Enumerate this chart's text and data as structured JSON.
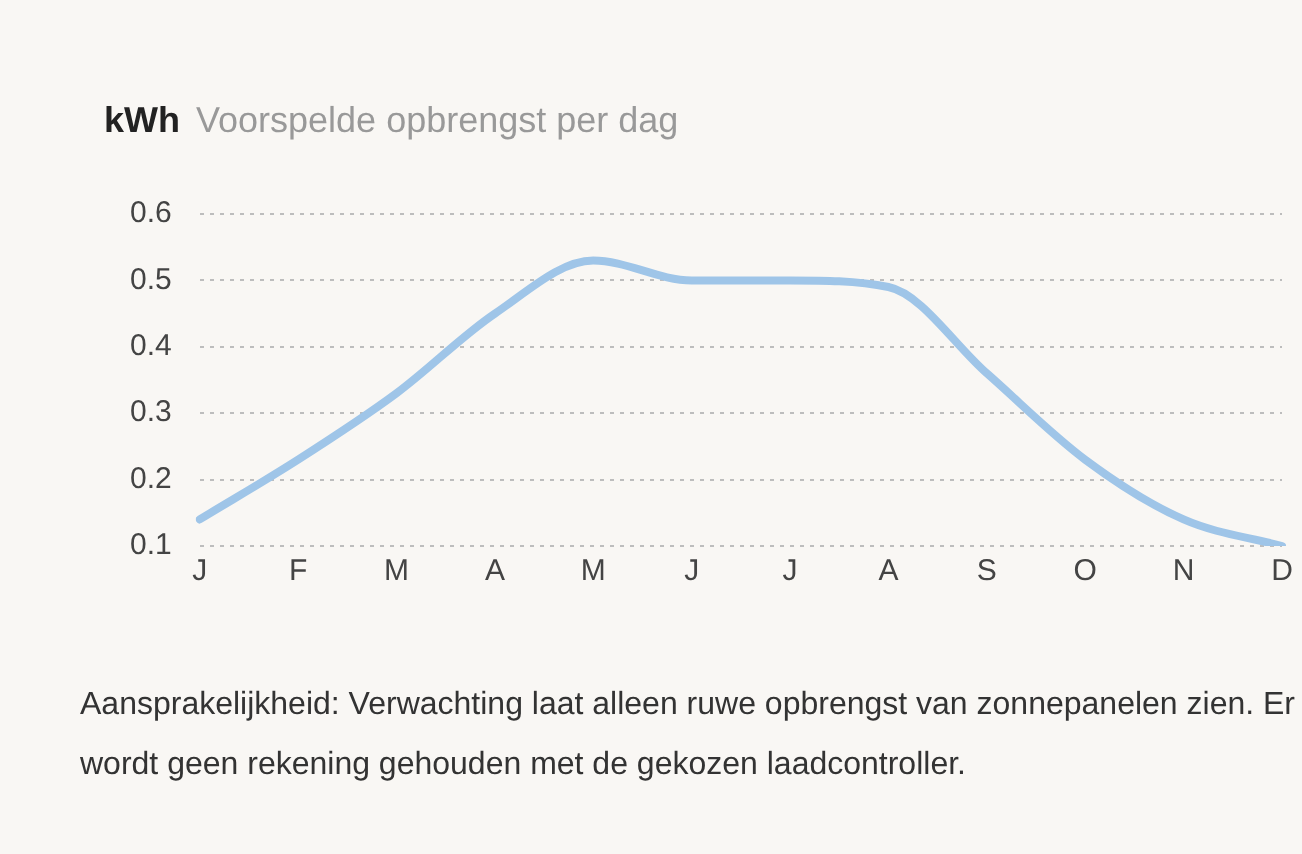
{
  "chart_data": {
    "type": "line",
    "title": "Voorspelde opbrengst per dag",
    "ylabel": "kWh",
    "categories": [
      "J",
      "F",
      "M",
      "A",
      "M",
      "J",
      "J",
      "A",
      "S",
      "O",
      "N",
      "D"
    ],
    "series": [
      {
        "color": "#9fc5e8",
        "values": [
          0.14,
          0.23,
          0.33,
          0.45,
          0.53,
          0.5,
          0.5,
          0.49,
          0.36,
          0.23,
          0.14,
          0.1
        ]
      }
    ],
    "ylim": [
      0.1,
      0.6
    ],
    "yticks": [
      0.1,
      0.2,
      0.3,
      0.4,
      0.5,
      0.6
    ],
    "grid": "y",
    "legend": false,
    "marker": "none",
    "line_style": "solid",
    "annotations": [
      "Aansprakelijkheid: Verwachting laat alleen ruwe opbrengst van zonnepanelen zien. Er wordt geen rekening gehouden met de gekozen laadcontroller."
    ]
  }
}
